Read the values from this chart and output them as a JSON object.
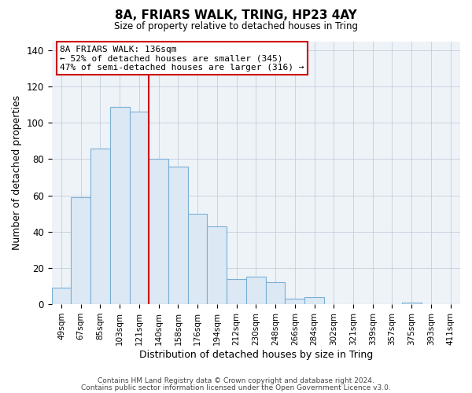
{
  "title": "8A, FRIARS WALK, TRING, HP23 4AY",
  "subtitle": "Size of property relative to detached houses in Tring",
  "xlabel": "Distribution of detached houses by size in Tring",
  "ylabel": "Number of detached properties",
  "bar_color": "#dce9f5",
  "bar_edge_color": "#7aafd4",
  "bins": [
    "49sqm",
    "67sqm",
    "85sqm",
    "103sqm",
    "121sqm",
    "140sqm",
    "158sqm",
    "176sqm",
    "194sqm",
    "212sqm",
    "230sqm",
    "248sqm",
    "266sqm",
    "284sqm",
    "302sqm",
    "321sqm",
    "339sqm",
    "357sqm",
    "375sqm",
    "393sqm",
    "411sqm"
  ],
  "values": [
    9,
    59,
    86,
    109,
    106,
    80,
    76,
    50,
    43,
    14,
    15,
    12,
    3,
    4,
    0,
    0,
    0,
    0,
    1,
    0,
    0
  ],
  "property_line_x": 5,
  "property_line_label": "8A FRIARS WALK: 136sqm",
  "annotation_line1": "← 52% of detached houses are smaller (345)",
  "annotation_line2": "47% of semi-detached houses are larger (316) →",
  "annotation_box_color": "#ffffff",
  "annotation_box_edge": "#cc0000",
  "vline_color": "#cc0000",
  "ylim": [
    0,
    145
  ],
  "yticks": [
    0,
    20,
    40,
    60,
    80,
    100,
    120,
    140
  ],
  "footer1": "Contains HM Land Registry data © Crown copyright and database right 2024.",
  "footer2": "Contains public sector information licensed under the Open Government Licence v3.0.",
  "bg_color": "#ffffff",
  "plot_bg_color": "#eef3f8"
}
